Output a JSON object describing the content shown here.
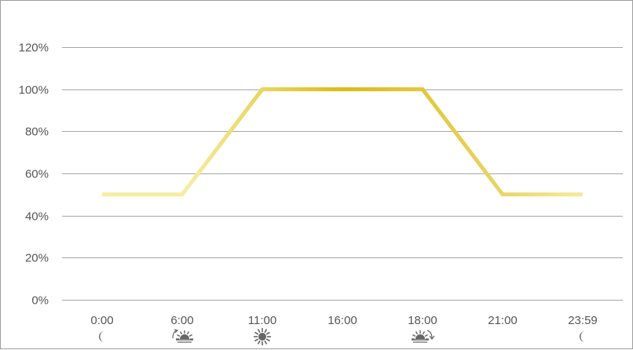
{
  "chart_data": {
    "type": "line",
    "title": "",
    "xlabel": "",
    "ylabel": "",
    "categories": [
      "0:00",
      "6:00",
      "11:00",
      "16:00",
      "18:00",
      "21:00",
      "23:59"
    ],
    "category_icons": [
      "moon-icon",
      "sunrise-icon",
      "sun-icon",
      "",
      "sunset-icon",
      "",
      "moon-icon"
    ],
    "x_hours": [
      0,
      6,
      11,
      16,
      18,
      21,
      23.983
    ],
    "series": [
      {
        "x": [
          0,
          6,
          11,
          16,
          18,
          21,
          23.983
        ],
        "values": [
          50,
          50,
          100,
          100,
          100,
          50,
          50
        ]
      }
    ],
    "y_ticks": [
      "0%",
      "20%",
      "40%",
      "60%",
      "80%",
      "100%",
      "120%"
    ],
    "ylim": [
      0,
      120
    ],
    "grid": true,
    "legend": "none",
    "colors": {
      "line_light": "#f5eca0",
      "line_mid": "#e8d566",
      "line_dark": "#d9bb10",
      "grid": "#a6a6a6",
      "frame": "#9e9e9e",
      "text": "#555555",
      "icon": "#666666"
    }
  }
}
